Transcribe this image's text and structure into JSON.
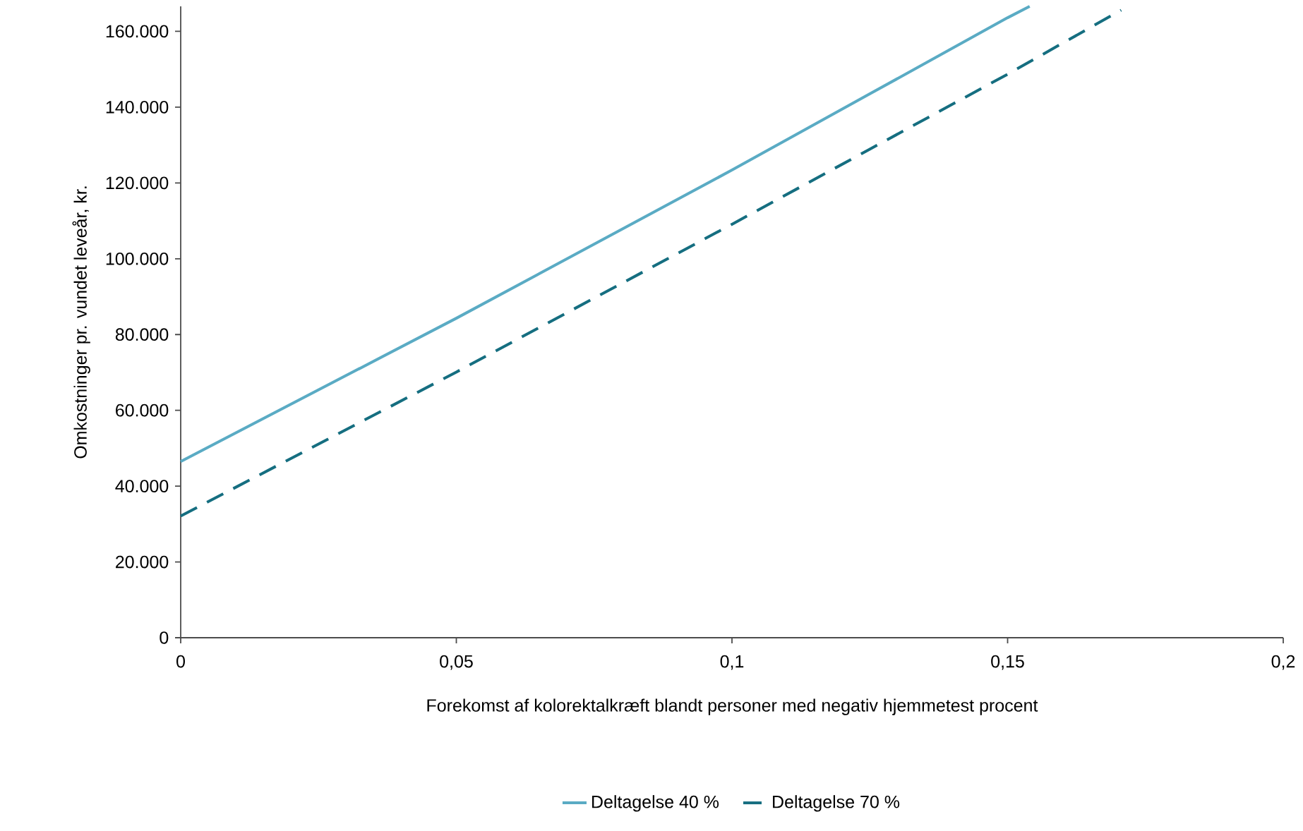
{
  "chart_data": {
    "type": "line",
    "xlabel": "Forekomst af kolorektalkræft blandt personer med negativ hjemmetest procent",
    "ylabel": "Omkostninger pr. vundet leveår, kr.",
    "xlim": [
      0,
      0.2
    ],
    "ylim": [
      0,
      166600
    ],
    "xticks": [
      0,
      {
        "value": 0.05,
        "label": "0,05"
      },
      {
        "value": 0.1,
        "label": "0,1"
      },
      {
        "value": 0.15,
        "label": "0,15"
      },
      {
        "value": 0.2,
        "label": "0,2"
      }
    ],
    "yticks": [
      0,
      {
        "value": 20000,
        "label": "20.000"
      },
      {
        "value": 40000,
        "label": "40.000"
      },
      {
        "value": 60000,
        "label": "60.000"
      },
      {
        "value": 80000,
        "label": "80.000"
      },
      {
        "value": 100000,
        "label": "100.000"
      },
      {
        "value": 120000,
        "label": "120.000"
      },
      {
        "value": 140000,
        "label": "140.000"
      },
      {
        "value": 160000,
        "label": "160.000"
      }
    ],
    "grid": false,
    "legend": "bottom",
    "series": [
      {
        "name": "Deltagelse 40 %",
        "color": "#5aabc4",
        "line_style": "solid",
        "x": [
          0,
          0.05,
          0.1,
          0.125,
          0.15,
          0.154
        ],
        "values": [
          46500,
          84300,
          123400,
          143500,
          163600,
          166600
        ]
      },
      {
        "name": "Deltagelse 70 %",
        "color": "#156e80",
        "line_style": "dashed",
        "x": [
          0,
          0.05,
          0.1,
          0.125,
          0.15,
          0.1706
        ],
        "values": [
          32100,
          70100,
          109100,
          128900,
          148700,
          165600
        ]
      }
    ]
  }
}
